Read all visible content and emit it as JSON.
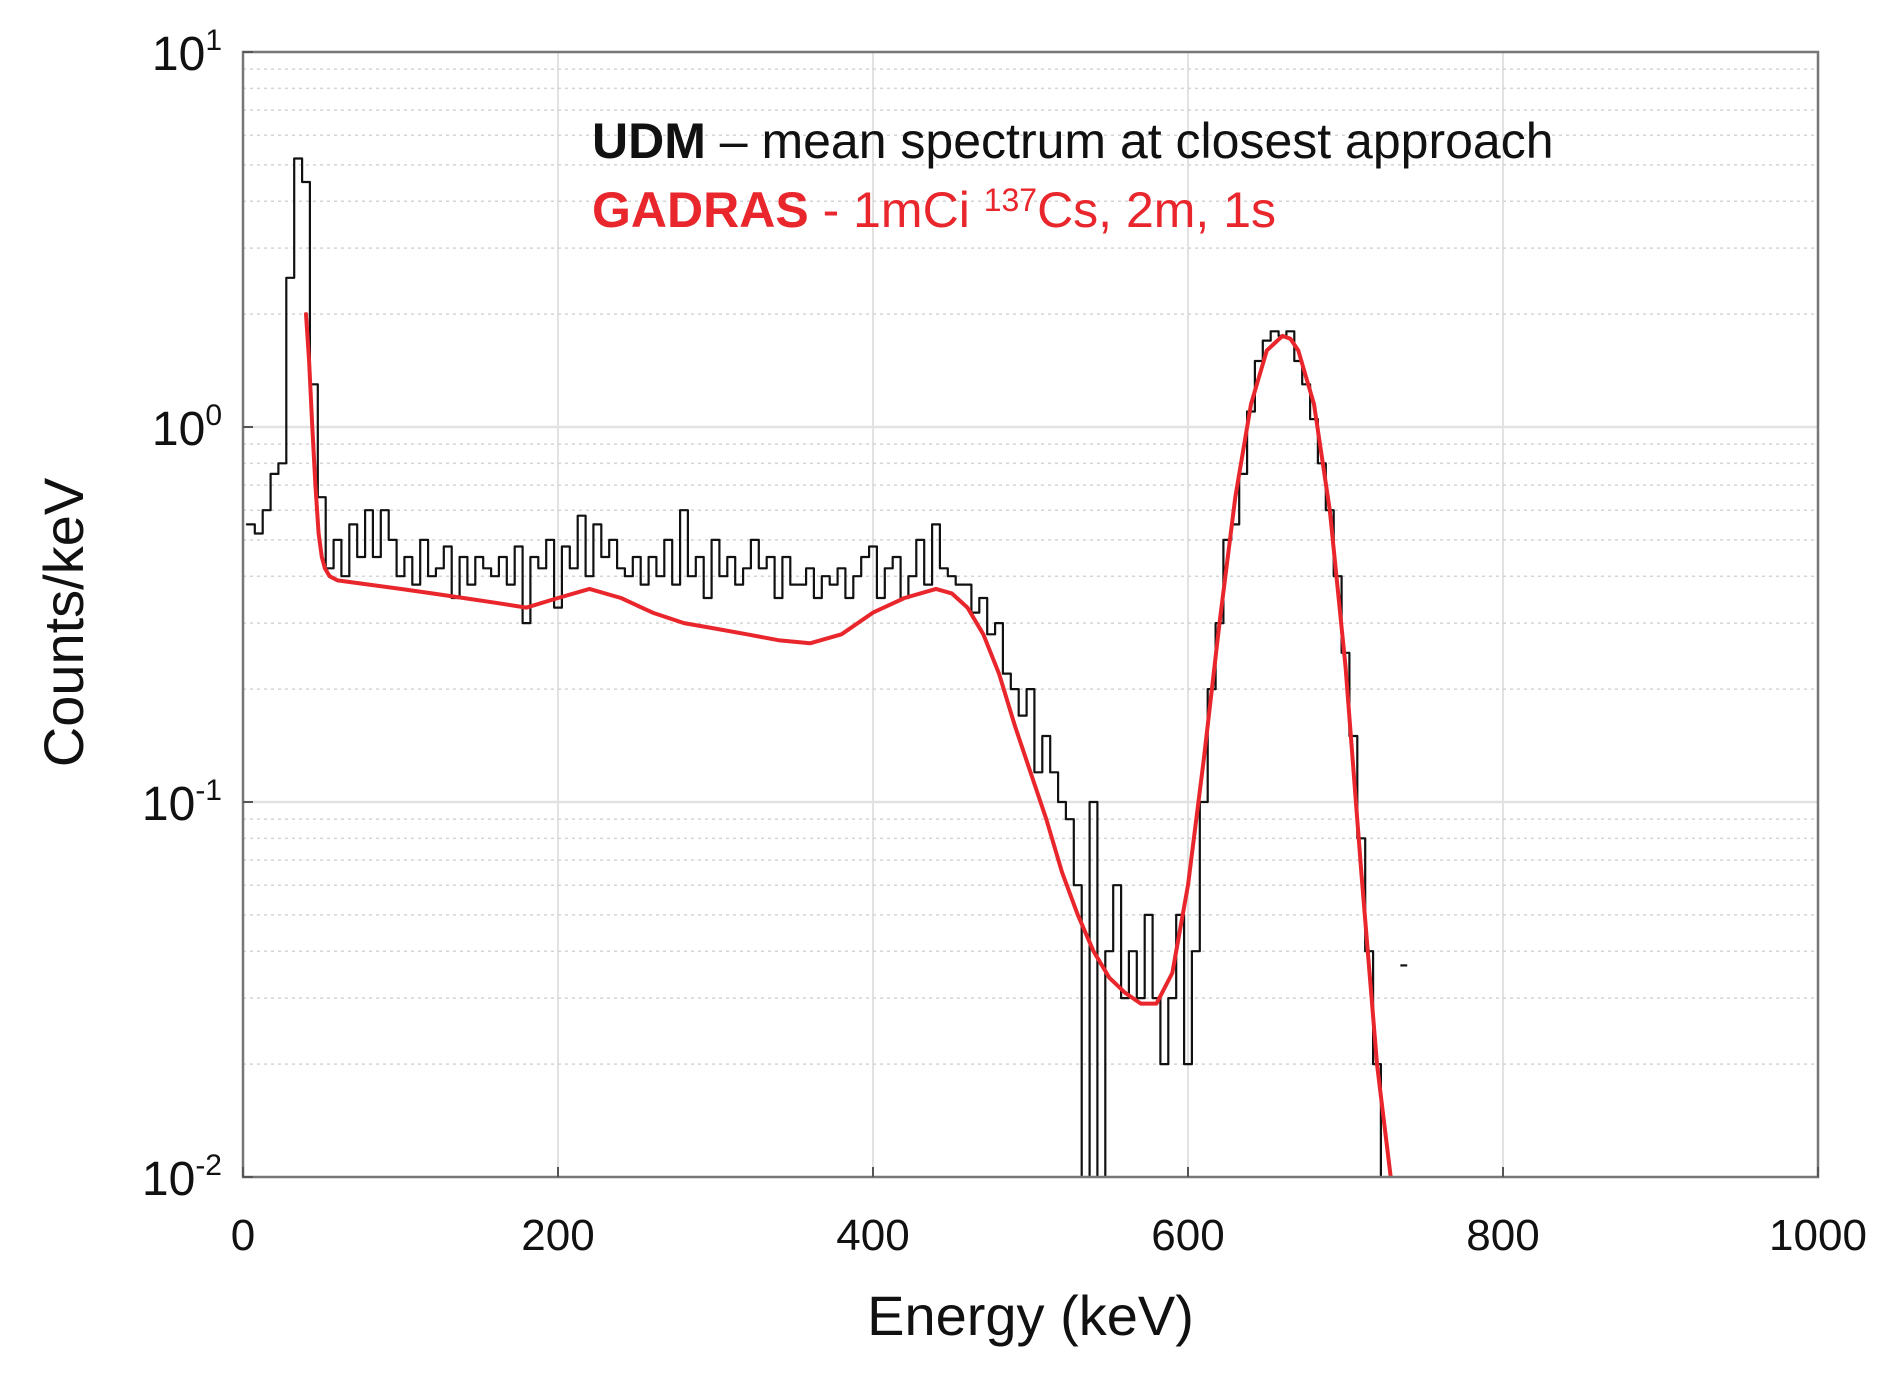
{
  "chart_data": {
    "type": "line",
    "title": "",
    "xlabel": "Energy (keV)",
    "ylabel": "Counts/keV",
    "xlim": [
      0,
      1000
    ],
    "ylim": [
      0.01,
      10
    ],
    "y_scale": "log",
    "grid": true,
    "x_ticks": [
      {
        "value": 0,
        "label": "0"
      },
      {
        "value": 200,
        "label": "200"
      },
      {
        "value": 400,
        "label": "400"
      },
      {
        "value": 600,
        "label": "600"
      },
      {
        "value": 800,
        "label": "800"
      },
      {
        "value": 1000,
        "label": "1000"
      }
    ],
    "y_ticks": [
      {
        "value": 10,
        "base": "10",
        "exp": "1"
      },
      {
        "value": 1,
        "base": "10",
        "exp": "0"
      },
      {
        "value": 0.1,
        "base": "10",
        "exp": "-1"
      },
      {
        "value": 0.01,
        "base": "10",
        "exp": "-2"
      }
    ],
    "legend": {
      "position": "top-right",
      "entries": [
        {
          "bold": "UDM",
          "rest": " – mean spectrum at closest approach",
          "color": "#111111"
        },
        {
          "bold": "GADRAS",
          "rest_pre": " - 1mCi ",
          "sup": "137",
          "rest_post": "Cs, 2m, 1s",
          "color": "#e8262c"
        }
      ]
    },
    "series": [
      {
        "name": "UDM – mean spectrum at closest approach",
        "style": "step",
        "color": "#111111",
        "bin_width": 5,
        "x": [
          5,
          10,
          15,
          20,
          25,
          30,
          35,
          40,
          45,
          50,
          55,
          60,
          65,
          70,
          75,
          80,
          85,
          90,
          95,
          100,
          105,
          110,
          115,
          120,
          125,
          130,
          135,
          140,
          145,
          150,
          155,
          160,
          165,
          170,
          175,
          180,
          185,
          190,
          195,
          200,
          205,
          210,
          215,
          220,
          225,
          230,
          235,
          240,
          245,
          250,
          255,
          260,
          265,
          270,
          275,
          280,
          285,
          290,
          295,
          300,
          305,
          310,
          315,
          320,
          325,
          330,
          335,
          340,
          345,
          350,
          355,
          360,
          365,
          370,
          375,
          380,
          385,
          390,
          395,
          400,
          405,
          410,
          415,
          420,
          425,
          430,
          435,
          440,
          445,
          450,
          455,
          460,
          465,
          470,
          475,
          480,
          485,
          490,
          495,
          500,
          505,
          510,
          515,
          520,
          525,
          530,
          535,
          540,
          545,
          550,
          555,
          560,
          565,
          570,
          575,
          580,
          585,
          590,
          595,
          600,
          605,
          610,
          615,
          620,
          625,
          630,
          635,
          640,
          645,
          650,
          655,
          660,
          665,
          670,
          675,
          680,
          685,
          690,
          695,
          700,
          705,
          710,
          715,
          720,
          725
        ],
        "values": [
          0.55,
          0.52,
          0.6,
          0.75,
          0.8,
          2.5,
          5.2,
          4.5,
          1.3,
          0.65,
          0.42,
          0.5,
          0.4,
          0.55,
          0.45,
          0.6,
          0.45,
          0.6,
          0.5,
          0.4,
          0.45,
          0.38,
          0.5,
          0.4,
          0.42,
          0.48,
          0.35,
          0.45,
          0.38,
          0.45,
          0.42,
          0.4,
          0.45,
          0.38,
          0.48,
          0.3,
          0.45,
          0.42,
          0.5,
          0.33,
          0.48,
          0.42,
          0.58,
          0.4,
          0.55,
          0.45,
          0.5,
          0.42,
          0.4,
          0.45,
          0.38,
          0.45,
          0.4,
          0.5,
          0.38,
          0.6,
          0.4,
          0.45,
          0.35,
          0.5,
          0.4,
          0.45,
          0.38,
          0.42,
          0.5,
          0.42,
          0.45,
          0.35,
          0.45,
          0.38,
          0.38,
          0.42,
          0.35,
          0.4,
          0.38,
          0.42,
          0.35,
          0.4,
          0.45,
          0.48,
          0.35,
          0.42,
          0.45,
          0.35,
          0.4,
          0.5,
          0.38,
          0.55,
          0.42,
          0.4,
          0.38,
          0.38,
          0.32,
          0.35,
          0.28,
          0.3,
          0.22,
          0.2,
          0.17,
          0.2,
          0.12,
          0.15,
          0.12,
          0.1,
          0.09,
          0.06,
          0.005,
          0.1,
          0.005,
          0.04,
          0.06,
          0.03,
          0.04,
          0.03,
          0.05,
          0.03,
          0.02,
          0.03,
          0.05,
          0.02,
          0.04,
          0.1,
          0.2,
          0.3,
          0.5,
          0.55,
          0.75,
          1.1,
          1.5,
          1.7,
          1.8,
          1.75,
          1.8,
          1.5,
          1.3,
          1.05,
          0.8,
          0.6,
          0.4,
          0.25,
          0.15,
          0.08,
          0.04,
          0.02,
          0.0001
        ]
      },
      {
        "name": "GADRAS - 1mCi 137Cs, 2m, 1s",
        "style": "line",
        "color": "#e8262c",
        "x": [
          40,
          42,
          44,
          46,
          48,
          50,
          52,
          55,
          60,
          80,
          100,
          120,
          140,
          160,
          180,
          200,
          220,
          240,
          260,
          280,
          300,
          320,
          340,
          360,
          380,
          400,
          420,
          440,
          450,
          460,
          470,
          480,
          490,
          500,
          510,
          520,
          530,
          540,
          550,
          560,
          570,
          580,
          590,
          600,
          610,
          620,
          630,
          640,
          650,
          660,
          665,
          670,
          680,
          690,
          700,
          710,
          720,
          730
        ],
        "values": [
          2.0,
          1.5,
          1.0,
          0.7,
          0.52,
          0.45,
          0.42,
          0.4,
          0.39,
          0.38,
          0.37,
          0.36,
          0.35,
          0.34,
          0.33,
          0.35,
          0.37,
          0.35,
          0.32,
          0.3,
          0.29,
          0.28,
          0.27,
          0.265,
          0.28,
          0.32,
          0.35,
          0.37,
          0.36,
          0.33,
          0.28,
          0.22,
          0.16,
          0.12,
          0.09,
          0.065,
          0.05,
          0.04,
          0.034,
          0.031,
          0.029,
          0.029,
          0.035,
          0.06,
          0.13,
          0.3,
          0.65,
          1.15,
          1.6,
          1.75,
          1.72,
          1.6,
          1.15,
          0.6,
          0.23,
          0.065,
          0.02,
          0.009
        ]
      }
    ],
    "annotations": [
      {
        "text": "-",
        "x": 737,
        "y": 0.035
      }
    ]
  }
}
